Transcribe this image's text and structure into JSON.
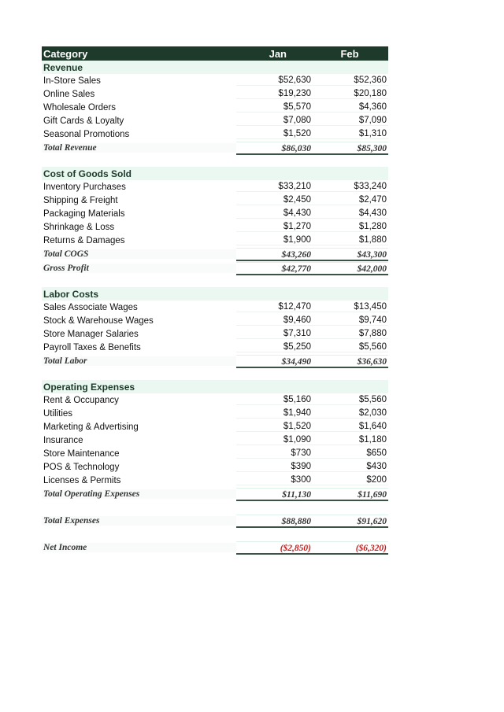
{
  "header": {
    "category": "Category",
    "jan": "Jan",
    "feb": "Feb"
  },
  "sections": [
    {
      "title": "Revenue",
      "items": [
        {
          "label": "In-Store Sales",
          "jan": "$52,630",
          "feb": "$52,360"
        },
        {
          "label": "Online Sales",
          "jan": "$19,230",
          "feb": "$20,180"
        },
        {
          "label": "Wholesale Orders",
          "jan": "$5,570",
          "feb": "$4,360"
        },
        {
          "label": "Gift Cards & Loyalty",
          "jan": "$7,080",
          "feb": "$7,090"
        },
        {
          "label": "Seasonal Promotions",
          "jan": "$1,520",
          "feb": "$1,310"
        }
      ],
      "totals": [
        {
          "label": "Total Revenue",
          "jan": "$86,030",
          "feb": "$85,300"
        }
      ]
    },
    {
      "title": "Cost of Goods Sold",
      "items": [
        {
          "label": "Inventory Purchases",
          "jan": "$33,210",
          "feb": "$33,240"
        },
        {
          "label": "Shipping & Freight",
          "jan": "$2,450",
          "feb": "$2,470"
        },
        {
          "label": "Packaging Materials",
          "jan": "$4,430",
          "feb": "$4,430"
        },
        {
          "label": "Shrinkage & Loss",
          "jan": "$1,270",
          "feb": "$1,280"
        },
        {
          "label": "Returns & Damages",
          "jan": "$1,900",
          "feb": "$1,880"
        }
      ],
      "totals": [
        {
          "label": "Total COGS",
          "jan": "$43,260",
          "feb": "$43,300"
        },
        {
          "label": "Gross Profit",
          "jan": "$42,770",
          "feb": "$42,000"
        }
      ]
    },
    {
      "title": "Labor Costs",
      "items": [
        {
          "label": "Sales Associate Wages",
          "jan": "$12,470",
          "feb": "$13,450"
        },
        {
          "label": "Stock & Warehouse Wages",
          "jan": "$9,460",
          "feb": "$9,740"
        },
        {
          "label": "Store Manager Salaries",
          "jan": "$7,310",
          "feb": "$7,880"
        },
        {
          "label": "Payroll Taxes & Benefits",
          "jan": "$5,250",
          "feb": "$5,560"
        }
      ],
      "totals": [
        {
          "label": "Total Labor",
          "jan": "$34,490",
          "feb": "$36,630"
        }
      ]
    },
    {
      "title": "Operating Expenses",
      "items": [
        {
          "label": "Rent & Occupancy",
          "jan": "$5,160",
          "feb": "$5,560"
        },
        {
          "label": "Utilities",
          "jan": "$1,940",
          "feb": "$2,030"
        },
        {
          "label": "Marketing & Advertising",
          "jan": "$1,520",
          "feb": "$1,640"
        },
        {
          "label": "Insurance",
          "jan": "$1,090",
          "feb": "$1,180"
        },
        {
          "label": "Store Maintenance",
          "jan": "$730",
          "feb": "$650"
        },
        {
          "label": "POS & Technology",
          "jan": "$390",
          "feb": "$430"
        },
        {
          "label": "Licenses & Permits",
          "jan": "$300",
          "feb": "$200"
        }
      ],
      "totals": [
        {
          "label": "Total Operating Expenses",
          "jan": "$11,130",
          "feb": "$11,690"
        }
      ]
    }
  ],
  "summary": [
    {
      "label": "Total Expenses",
      "jan": "$88,880",
      "feb": "$91,620",
      "negative": false
    },
    {
      "label": "Net Income",
      "jan": "($2,850)",
      "feb": "($6,320)",
      "negative": true
    }
  ],
  "colors": {
    "header_bg": "#1d3a2a",
    "section_bg": "#eaf8f1",
    "negative": "#d01818"
  }
}
